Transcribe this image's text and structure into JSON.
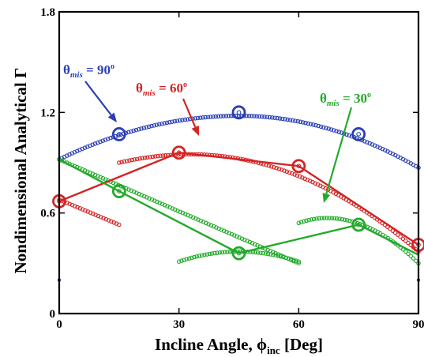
{
  "chart_data": {
    "type": "scatter",
    "xlabel_main": "Incline Angle, ",
    "xlabel_symbol": "ϕ",
    "xlabel_sub": "inc",
    "xlabel_unit": " [Deg]",
    "ylabel": "Nondimensional Analytical Γ",
    "xlim": [
      0,
      90
    ],
    "ylim": [
      0,
      1.8
    ],
    "x_ticks": [
      0,
      30,
      60,
      90
    ],
    "x_tick_labels": [
      "0",
      "30",
      "60",
      "90"
    ],
    "y_ticks": [
      0,
      0.6,
      1.2,
      1.8
    ],
    "y_tick_labels": [
      "0",
      "0.6",
      "1.2",
      "1.8"
    ],
    "grid": false,
    "series": [
      {
        "name_symbol": "θ",
        "name_sub": "mis",
        "name_value": " = 90",
        "name_sup": "o",
        "color": "#2a3fb5",
        "dense_segments": [
          {
            "x": [
              0,
              90
            ],
            "y": [
              0.92,
              0.87
            ],
            "peak_x": 45,
            "peak_y": 1.18
          }
        ],
        "markers": {
          "x": [
            15,
            45,
            75
          ],
          "y": [
            1.07,
            1.2,
            1.07
          ]
        },
        "small_points": {
          "x": [
            0,
            90
          ],
          "y": [
            0.2,
            0.2
          ]
        }
      },
      {
        "name_symbol": "θ",
        "name_sub": "mis",
        "name_value": " = 60",
        "name_sup": "o",
        "color": "#d42424",
        "dense_segments": [
          {
            "x": [
              0,
              15
            ],
            "y": [
              0.68,
              0.53
            ]
          },
          {
            "x": [
              15,
              90
            ],
            "y": [
              0.9,
              0.37
            ],
            "peak_x": 33,
            "peak_y": 0.95
          }
        ],
        "markers": {
          "x": [
            0,
            30,
            60,
            90
          ],
          "y": [
            0.67,
            0.96,
            0.88,
            0.41
          ]
        },
        "lines": {
          "x": [
            0,
            30,
            60,
            90
          ],
          "y": [
            0.67,
            0.96,
            0.88,
            0.41
          ]
        }
      },
      {
        "name_symbol": "θ",
        "name_sub": "mis",
        "name_value": " = 30",
        "name_sup": "o",
        "color": "#22aa2a",
        "dense_segments": [
          {
            "x": [
              0,
              60
            ],
            "y": [
              0.92,
              0.3
            ]
          },
          {
            "x": [
              30,
              60
            ],
            "y": [
              0.31,
              0.31
            ],
            "peak_x": 45,
            "peak_y": 0.37
          },
          {
            "x": [
              60,
              90
            ],
            "y": [
              0.54,
              0.3
            ],
            "peak_x": 67,
            "peak_y": 0.57
          }
        ],
        "markers": {
          "x": [
            15,
            45,
            75
          ],
          "y": [
            0.73,
            0.36,
            0.53
          ]
        },
        "lines": {
          "x": [
            0,
            15,
            45,
            75,
            90
          ],
          "y": [
            0.92,
            0.73,
            0.36,
            0.53,
            0.35
          ]
        }
      }
    ]
  }
}
